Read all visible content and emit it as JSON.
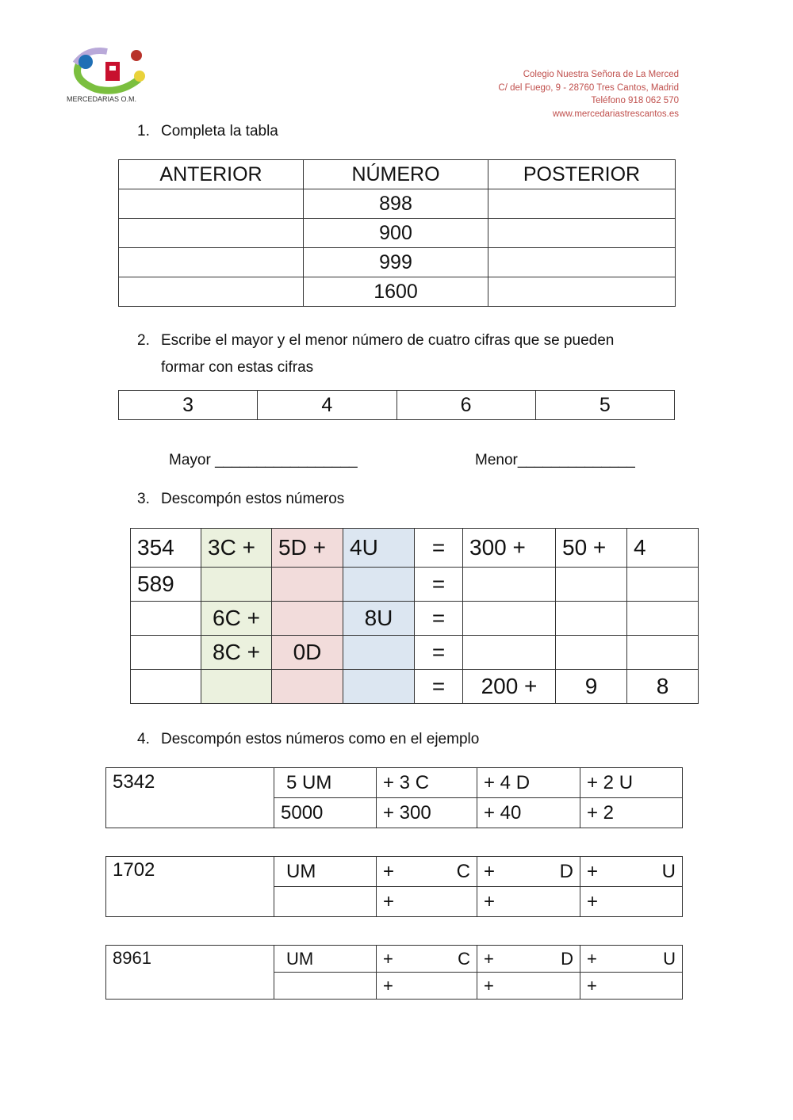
{
  "logo": {
    "arc_text": "Nuestra Señora de La Merced",
    "caption": "MERCEDARIAS O.M."
  },
  "header": {
    "lines": [
      "Colegio Nuestra Señora de La Merced",
      "C/ del Fuego, 9 - 28760 Tres Cantos, Madrid",
      "Teléfono 918 062 570",
      "www.mercedariastrescantos.es"
    ],
    "color": "#c0504d"
  },
  "q1": {
    "num": "1.",
    "text": "Completa la tabla",
    "headers": [
      "ANTERIOR",
      "NÚMERO",
      "POSTERIOR"
    ],
    "rows": [
      [
        "",
        "898",
        ""
      ],
      [
        "",
        "900",
        ""
      ],
      [
        "",
        "999",
        ""
      ],
      [
        "",
        "1600",
        ""
      ]
    ]
  },
  "q2": {
    "num": "2.",
    "text": "Escribe el mayor y el menor número de cuatro cifras que se pueden",
    "text2": "formar con estas cifras",
    "digits": [
      "3",
      "4",
      "6",
      "5"
    ],
    "mayor": "Mayor _________________",
    "menor": "Menor______________"
  },
  "q3": {
    "num": "3.",
    "text": "Descompón estos números",
    "colors": {
      "C": "#ebf1de",
      "D": "#f2dcdb",
      "U": "#dce6f1"
    },
    "rows": [
      [
        "354",
        "3C +",
        "5D +",
        "4U",
        "=",
        "300 +",
        "50 +",
        "4"
      ],
      [
        "589",
        "",
        "",
        "",
        "=",
        "",
        "",
        ""
      ],
      [
        "",
        "6C +",
        "",
        "8U",
        "=",
        "",
        "",
        ""
      ],
      [
        "",
        "8C +",
        "0D",
        "",
        "=",
        "",
        "",
        ""
      ],
      [
        "",
        "",
        "",
        "",
        "=",
        "200 +",
        "9",
        "8"
      ]
    ]
  },
  "q4": {
    "num": "4.",
    "text": "Descompón estos números como en el ejemplo",
    "example": {
      "number": "5342",
      "top": [
        "5 UM",
        "+ 3 C",
        "+ 4 D",
        "+ 2 U"
      ],
      "bottom": [
        "5000",
        "+ 300",
        "+ 40",
        "+ 2"
      ]
    },
    "tasks": [
      {
        "number": "1702",
        "um": "UM",
        "plus": "+",
        "c": "C",
        "d": "D",
        "u": "U"
      },
      {
        "number": "8961",
        "um": "UM",
        "plus": "+",
        "c": "C",
        "d": "D",
        "u": "U"
      }
    ]
  }
}
